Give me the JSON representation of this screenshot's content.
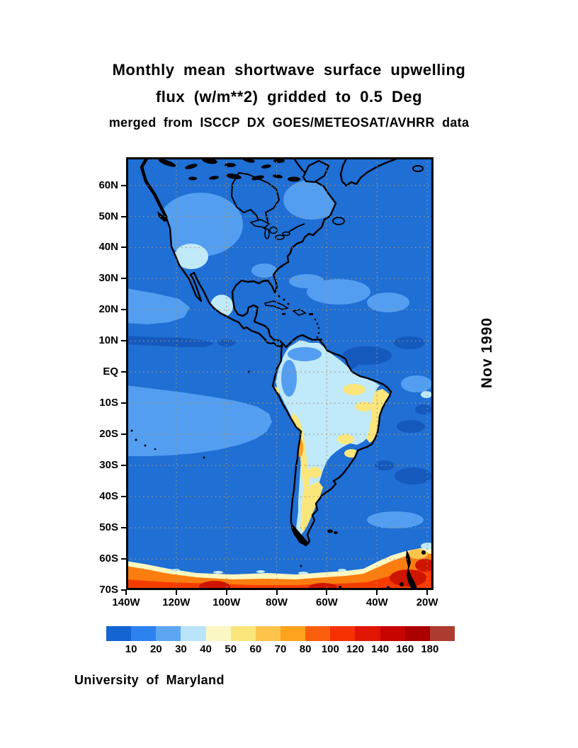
{
  "title": {
    "line1": "Monthly mean shortwave surface upwelling",
    "line2": "flux (w/m**2) gridded to 0.5 Deg",
    "line3": "merged from ISCCP DX GOES/METEOSAT/AVHRR data"
  },
  "side_label": "Nov 1990",
  "credit": "University of Maryland",
  "map": {
    "lat_ticks": [
      {
        "label": "60N",
        "deg": 60
      },
      {
        "label": "50N",
        "deg": 50
      },
      {
        "label": "40N",
        "deg": 40
      },
      {
        "label": "30N",
        "deg": 30
      },
      {
        "label": "20N",
        "deg": 20
      },
      {
        "label": "10N",
        "deg": 10
      },
      {
        "label": "EQ",
        "deg": 0
      },
      {
        "label": "10S",
        "deg": -10
      },
      {
        "label": "20S",
        "deg": -20
      },
      {
        "label": "30S",
        "deg": -30
      },
      {
        "label": "40S",
        "deg": -40
      },
      {
        "label": "50S",
        "deg": -50
      },
      {
        "label": "60S",
        "deg": -60
      },
      {
        "label": "70S",
        "deg": -70
      }
    ],
    "lon_ticks": [
      {
        "label": "140W",
        "deg": 140
      },
      {
        "label": "120W",
        "deg": 120
      },
      {
        "label": "100W",
        "deg": 100
      },
      {
        "label": "80W",
        "deg": 80
      },
      {
        "label": "60W",
        "deg": 60
      },
      {
        "label": "40W",
        "deg": 40
      },
      {
        "label": "20W",
        "deg": 20
      }
    ],
    "lat_range_deg": {
      "north": 69,
      "south": -70
    },
    "lon_range_deg": {
      "west": 140,
      "east": 17.5
    }
  },
  "colorbar": {
    "values": [
      "10",
      "20",
      "30",
      "40",
      "50",
      "60",
      "70",
      "80",
      "100",
      "120",
      "140",
      "160",
      "180"
    ],
    "colors": [
      "#1464d2",
      "#2e82f0",
      "#5ca6f2",
      "#b9e4fa",
      "#fbf7c4",
      "#fbe67c",
      "#fdc44c",
      "#fda41c",
      "#fb5e0c",
      "#f53200",
      "#e11602",
      "#c60400",
      "#ab0100",
      "#ad3c30"
    ]
  },
  "colors": {
    "ocean": "#1f6fd4",
    "ocean_light": "#539ef0",
    "pale_cyan": "#c0e9fa",
    "ocean_dark": "#1559bd",
    "yellow": "#fbe67c",
    "cream": "#fdf7c0",
    "amber": "#fdc44c",
    "orange": "#fb7d10",
    "red": "#f53c00",
    "dark_red": "#ce1500",
    "grid_dots": "#a89878"
  },
  "chart_data": {
    "type": "heatmap",
    "title": "Monthly mean shortwave surface upwelling flux (w/m**2) gridded to 0.5 Deg",
    "subtitle": "merged from ISCCP DX GOES/METEOSAT/AVHRR data",
    "date": "Nov 1990",
    "units": "w/m**2",
    "grid_resolution": "0.5 Deg",
    "lat_ticks": [
      "60N",
      "50N",
      "40N",
      "30N",
      "20N",
      "10N",
      "EQ",
      "10S",
      "20S",
      "30S",
      "40S",
      "50S",
      "60S",
      "70S"
    ],
    "lon_ticks": [
      "140W",
      "120W",
      "100W",
      "80W",
      "60W",
      "40W",
      "20W"
    ],
    "colorbar_levels": [
      10,
      20,
      30,
      40,
      50,
      60,
      70,
      80,
      100,
      120,
      140,
      160,
      180
    ],
    "colorbar_colors": [
      "#1464d2",
      "#2e82f0",
      "#5ca6f2",
      "#b9e4fa",
      "#fbf7c4",
      "#fbe67c",
      "#fdc44c",
      "#fda41c",
      "#fb5e0c",
      "#f53200",
      "#e11602",
      "#c60400",
      "#ab0100",
      "#ad3c30"
    ],
    "legend_position": "bottom",
    "grid": "dotted graticule every 10 deg latitude / 20 deg longitude",
    "region_values_w_m2": [
      {
        "region": "Open ocean background (Pacific & Atlantic)",
        "value": "10-20"
      },
      {
        "region": "ITCZ cloud band ~5-10N eastern Pacific",
        "value": "<10"
      },
      {
        "region": "Subtropical SE Pacific ~5-20S stratocumulus patch",
        "value": "20-30"
      },
      {
        "region": "North America land (most)",
        "value": "10-30"
      },
      {
        "region": "US Great Basin / Mexican plateau",
        "value": "30-40"
      },
      {
        "region": "Amazon basin & tropical South America",
        "value": "30-40"
      },
      {
        "region": "Northeast Brazil coastal band",
        "value": "40-60"
      },
      {
        "region": "Andes Altiplano 15-25S",
        "value": "40-70"
      },
      {
        "region": "Altiplano bright spot ~20S 68W",
        "value": "70-80"
      },
      {
        "region": "Argentina pampas 25-45S",
        "value": "40-60"
      },
      {
        "region": "Southern Ocean open water to ~62S",
        "value": "10-20"
      },
      {
        "region": "Antarctic sea-ice edge ~62S (cream/orange band)",
        "value": "40-100"
      },
      {
        "region": "Antarctic sea ice / continent 63-70S",
        "value": "100-180+"
      }
    ]
  }
}
